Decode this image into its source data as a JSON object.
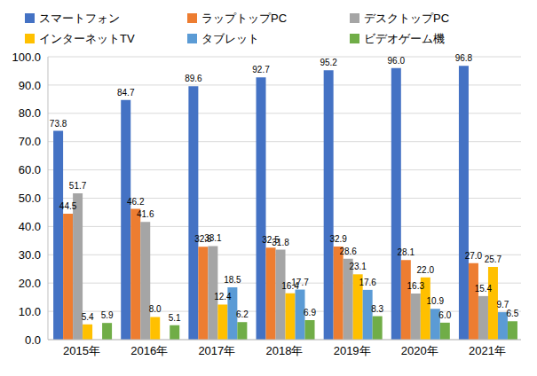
{
  "chart_data": {
    "type": "bar",
    "categories": [
      "2015年",
      "2016年",
      "2017年",
      "2018年",
      "2019年",
      "2020年",
      "2021年"
    ],
    "series": [
      {
        "name": "スマートフォン",
        "color": "#4472c4",
        "values": [
          73.8,
          84.7,
          89.6,
          92.7,
          95.2,
          96.0,
          96.8
        ],
        "value_labels": [
          "73.8",
          "84.7",
          "89.6",
          "92.7",
          "95.2",
          "96.0",
          "96.8"
        ]
      },
      {
        "name": "ラップトップPC",
        "color": "#ed7d31",
        "values": [
          44.5,
          46.2,
          32.8,
          32.5,
          32.9,
          28.1,
          27.0
        ],
        "value_labels": [
          "44.5",
          "46.2",
          "32.8",
          "32.5",
          "32.9",
          "28.1",
          "27.0"
        ]
      },
      {
        "name": "デスクトップPC",
        "color": "#a5a5a5",
        "values": [
          51.7,
          41.6,
          33.1,
          31.8,
          28.6,
          16.3,
          15.4
        ],
        "value_labels": [
          "51.7",
          "41.6",
          "33.1",
          "31.8",
          "28.6",
          "16.3",
          "15.4"
        ]
      },
      {
        "name": "インターネットTV",
        "color": "#ffc000",
        "values": [
          5.4,
          8.0,
          12.4,
          16.4,
          23.1,
          22.0,
          25.7
        ],
        "value_labels": [
          "5.4",
          "8.0",
          "12.4",
          "16.4",
          "23.1",
          "22.0",
          "25.7"
        ]
      },
      {
        "name": "タブレット",
        "color": "#5b9bd5",
        "values": [
          null,
          null,
          18.5,
          17.7,
          17.6,
          10.9,
          9.7
        ],
        "value_labels": [
          null,
          null,
          "18.5",
          "17.7",
          "17.6",
          "10.9",
          "9.7"
        ]
      },
      {
        "name": "ビデオゲーム機",
        "color": "#70ad47",
        "values": [
          5.9,
          5.1,
          6.2,
          6.9,
          8.3,
          6.0,
          6.5
        ],
        "value_labels": [
          "5.9",
          "5.1",
          "6.2",
          "6.9",
          "8.3",
          "6.0",
          "6.5"
        ]
      }
    ],
    "ylim": [
      0,
      100
    ],
    "yticks": [
      {
        "value": 0,
        "label": "0.0"
      },
      {
        "value": 10,
        "label": "10.0"
      },
      {
        "value": 20,
        "label": "20.0"
      },
      {
        "value": 30,
        "label": "30.0"
      },
      {
        "value": 40,
        "label": "40.0"
      },
      {
        "value": 50,
        "label": "50.0"
      },
      {
        "value": 60,
        "label": "60.0"
      },
      {
        "value": 70,
        "label": "70.0"
      },
      {
        "value": 80,
        "label": "80.0"
      },
      {
        "value": 90,
        "label": "90.0"
      },
      {
        "value": 100,
        "label": "100.0"
      }
    ],
    "grid": true,
    "legend": "top",
    "data_labels": true
  }
}
